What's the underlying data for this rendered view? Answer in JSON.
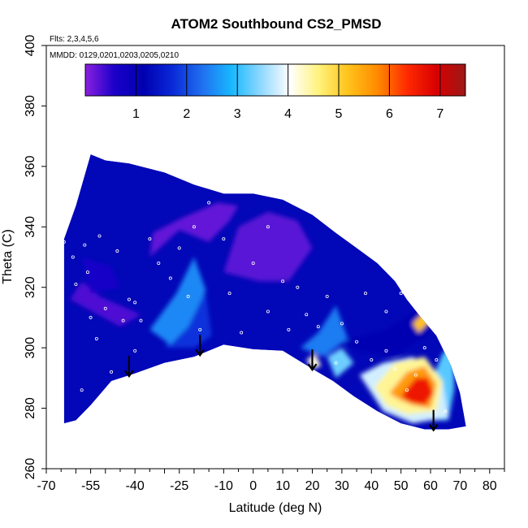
{
  "chart_data": {
    "type": "heatmap",
    "title": "ATOM2 Southbound CS2_PMSD",
    "subtitle_flights": "Flts: 2,3,4,5,6",
    "legend_dates": "MMDD: 0129,0201,0203,0205,0210",
    "xlabel": "Latitude (deg N)",
    "ylabel": "Theta (C)",
    "xlim": [
      -70,
      85
    ],
    "ylim": [
      260,
      400
    ],
    "x_ticks": [
      -70,
      -55,
      -40,
      -25,
      -10,
      0,
      10,
      20,
      30,
      40,
      50,
      60,
      70,
      80
    ],
    "y_ticks": [
      260,
      280,
      300,
      320,
      340,
      360,
      380,
      400
    ],
    "colorbar": {
      "range": [
        0,
        7.5
      ],
      "ticks": [
        1,
        2,
        3,
        4,
        5,
        6,
        7
      ],
      "colors": [
        "#8b1fe0",
        "#1a00c8",
        "#0000b0",
        "#0a2ad8",
        "#2070f0",
        "#18b8ff",
        "#8fd8ff",
        "#ffffff",
        "#fff27a",
        "#ffc21a",
        "#ff8a00",
        "#ff2a00",
        "#d80000",
        "#9c1818"
      ]
    },
    "field_outline": {
      "upper": [
        [
          -64,
          336
        ],
        [
          -60,
          347
        ],
        [
          -55,
          364
        ],
        [
          -50,
          362
        ],
        [
          -42,
          361
        ],
        [
          -30,
          358
        ],
        [
          -20,
          354
        ],
        [
          -10,
          351
        ],
        [
          0,
          351
        ],
        [
          10,
          349
        ],
        [
          20,
          344
        ],
        [
          28,
          338
        ],
        [
          35,
          333
        ],
        [
          42,
          328
        ],
        [
          48,
          322
        ],
        [
          52,
          316
        ],
        [
          56,
          311
        ],
        [
          62,
          304
        ],
        [
          67,
          294
        ],
        [
          70,
          285
        ],
        [
          72,
          274
        ]
      ],
      "lower": [
        [
          72,
          274
        ],
        [
          66,
          273
        ],
        [
          58,
          273
        ],
        [
          50,
          275
        ],
        [
          42,
          279
        ],
        [
          34,
          284
        ],
        [
          27,
          289
        ],
        [
          20,
          293
        ],
        [
          10,
          299
        ],
        [
          0,
          299.5
        ],
        [
          -10,
          301
        ],
        [
          -20,
          297
        ],
        [
          -30,
          295
        ],
        [
          -40,
          291.5
        ],
        [
          -48,
          289
        ],
        [
          -55,
          281
        ],
        [
          -60,
          276
        ],
        [
          -64,
          275
        ]
      ]
    },
    "patches": [
      {
        "value": 0.2,
        "points": [
          [
            -35,
            330
          ],
          [
            -25,
            339
          ],
          [
            -15,
            335
          ],
          [
            -8,
            342
          ],
          [
            -5,
            347
          ],
          [
            -12,
            348
          ],
          [
            -24,
            343
          ],
          [
            -34,
            338
          ]
        ]
      },
      {
        "value": 0.25,
        "points": [
          [
            -10,
            325
          ],
          [
            -5,
            340
          ],
          [
            5,
            345
          ],
          [
            15,
            342
          ],
          [
            20,
            333
          ],
          [
            12,
            322
          ],
          [
            2,
            322
          ]
        ]
      },
      {
        "value": 0.3,
        "points": [
          [
            -62,
            316
          ],
          [
            -45,
            307
          ],
          [
            -38,
            311
          ],
          [
            -52,
            317
          ],
          [
            -58,
            322
          ]
        ]
      },
      {
        "value": 0.6,
        "points": [
          [
            -58,
            330
          ],
          [
            -48,
            327
          ],
          [
            -45,
            320
          ],
          [
            -55,
            318
          ]
        ]
      },
      {
        "value": 1.1,
        "points": [
          [
            30,
            302
          ],
          [
            45,
            306
          ],
          [
            56,
            313
          ],
          [
            60,
            315
          ],
          [
            60,
            305
          ],
          [
            48,
            297
          ],
          [
            35,
            299
          ]
        ]
      },
      {
        "value": 1.8,
        "points": [
          [
            -30,
            300
          ],
          [
            -22,
            312
          ],
          [
            -16,
            318
          ],
          [
            -14,
            304
          ],
          [
            -20,
            300
          ]
        ]
      },
      {
        "value": 2.5,
        "points": [
          [
            -35,
            306
          ],
          [
            -26,
            318
          ],
          [
            -20,
            330
          ],
          [
            -16,
            319
          ],
          [
            -22,
            307
          ],
          [
            -28,
            301
          ]
        ]
      },
      {
        "value": 2.4,
        "points": [
          [
            16,
            300
          ],
          [
            22,
            305
          ],
          [
            28,
            314
          ],
          [
            32,
            303
          ],
          [
            24,
            297
          ]
        ]
      },
      {
        "value": 3.3,
        "points": [
          [
            25,
            297
          ],
          [
            30,
            300
          ],
          [
            34,
            295
          ],
          [
            28,
            290
          ]
        ]
      },
      {
        "value": 3.2,
        "points": [
          [
            60,
            288
          ],
          [
            64,
            298
          ],
          [
            68,
            302
          ],
          [
            68,
            286
          ],
          [
            66,
            276
          ],
          [
            58,
            276
          ]
        ]
      },
      {
        "value": 3.8,
        "points": [
          [
            36,
            291
          ],
          [
            44,
            295
          ],
          [
            54,
            297
          ],
          [
            64,
            289
          ],
          [
            66,
            277
          ],
          [
            54,
            275
          ],
          [
            44,
            279
          ]
        ]
      },
      {
        "value": 4.5,
        "points": [
          [
            41,
            287
          ],
          [
            48,
            295
          ],
          [
            58,
            297
          ],
          [
            64,
            289
          ],
          [
            62,
            279
          ],
          [
            52,
            278
          ],
          [
            45,
            281
          ]
        ]
      },
      {
        "value": 5.6,
        "points": [
          [
            46,
            285
          ],
          [
            52,
            292
          ],
          [
            58,
            294
          ],
          [
            62,
            288
          ],
          [
            60,
            280
          ],
          [
            54,
            281
          ],
          [
            49,
            283
          ]
        ]
      },
      {
        "value": 6.6,
        "points": [
          [
            50,
            284
          ],
          [
            55,
            290
          ],
          [
            59,
            290
          ],
          [
            61,
            285
          ],
          [
            58,
            281
          ],
          [
            53,
            282
          ]
        ]
      },
      {
        "value": 5.2,
        "points": [
          [
            54,
            308
          ],
          [
            58,
            312
          ],
          [
            60,
            309
          ],
          [
            56,
            305
          ]
        ]
      },
      {
        "value": 4.2,
        "points": [
          [
            18,
            296
          ],
          [
            21,
            298
          ],
          [
            23,
            294
          ],
          [
            20,
            293
          ]
        ]
      }
    ],
    "observation_points": [
      [
        -64,
        335
      ],
      [
        -61,
        330
      ],
      [
        -60,
        321
      ],
      [
        -57,
        334
      ],
      [
        -56,
        325
      ],
      [
        -55,
        310
      ],
      [
        -53,
        303
      ],
      [
        -52,
        337
      ],
      [
        -50,
        313
      ],
      [
        -46,
        332
      ],
      [
        -44,
        309
      ],
      [
        -42,
        316
      ],
      [
        -40,
        299
      ],
      [
        -38,
        309
      ],
      [
        -35,
        336
      ],
      [
        -32,
        328
      ],
      [
        -28,
        323
      ],
      [
        -25,
        333
      ],
      [
        -22,
        317
      ],
      [
        -18,
        306
      ],
      [
        -15,
        348
      ],
      [
        -10,
        336
      ],
      [
        -8,
        318
      ],
      [
        -4,
        305
      ],
      [
        0,
        328
      ],
      [
        5,
        312
      ],
      [
        10,
        322
      ],
      [
        12,
        306
      ],
      [
        15,
        320
      ],
      [
        18,
        311
      ],
      [
        22,
        307
      ],
      [
        25,
        317
      ],
      [
        30,
        308
      ],
      [
        35,
        302
      ],
      [
        40,
        296
      ],
      [
        45,
        299
      ],
      [
        48,
        293
      ],
      [
        52,
        286
      ],
      [
        55,
        291
      ],
      [
        58,
        300
      ],
      [
        62,
        296
      ],
      [
        65,
        279
      ],
      [
        45,
        312
      ],
      [
        50,
        318
      ],
      [
        38,
        318
      ],
      [
        28,
        295
      ],
      [
        -30,
        292
      ],
      [
        -48,
        292
      ],
      [
        -58,
        286
      ],
      [
        -20,
        340
      ],
      [
        5,
        340
      ],
      [
        -40,
        315
      ]
    ],
    "arrows_latitude": [
      -42,
      -18,
      20,
      61
    ]
  }
}
